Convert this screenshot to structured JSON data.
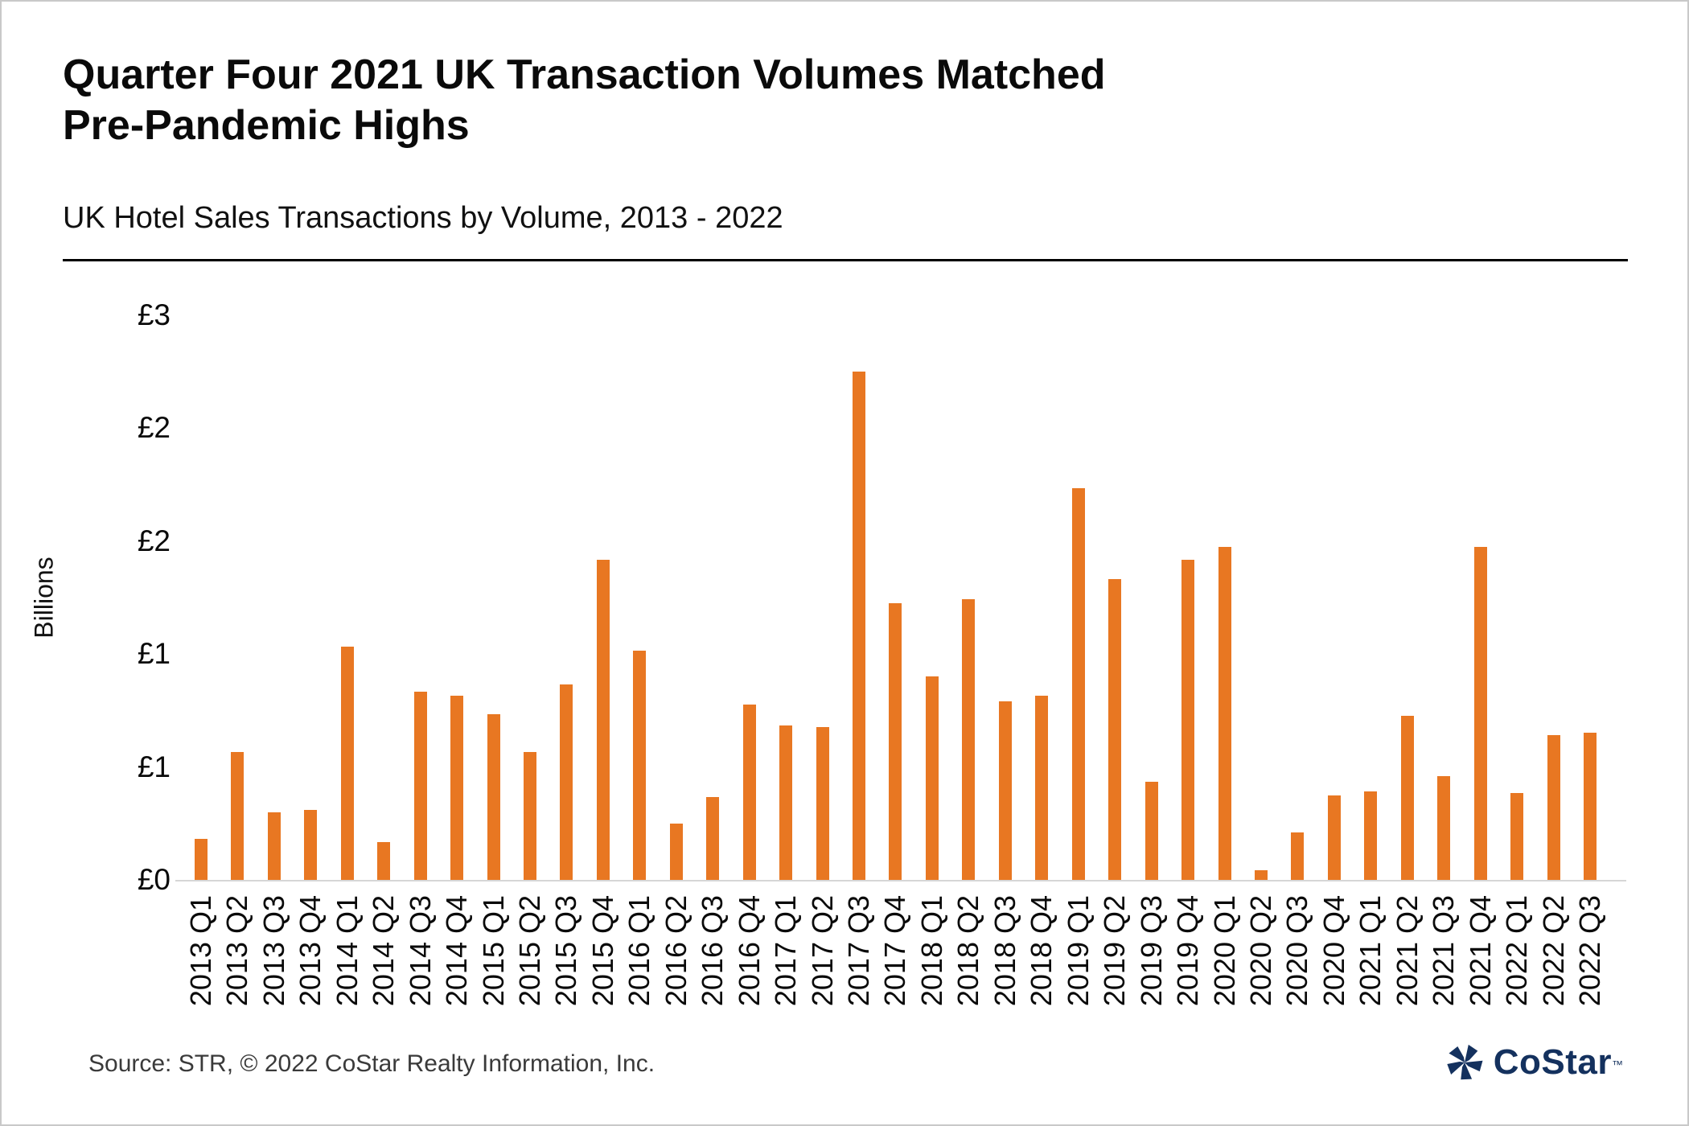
{
  "title": {
    "line1": "Quarter Four 2021 UK Transaction Volumes Matched",
    "line2": "Pre-Pandemic Highs"
  },
  "subtitle": "UK Hotel Sales Transactions by Volume, 2013 - 2022",
  "y_axis": {
    "title": "Billions",
    "ticks": [
      {
        "label": "£3",
        "value": 3.0
      },
      {
        "label": "£2",
        "value": 2.4
      },
      {
        "label": "£2",
        "value": 1.8
      },
      {
        "label": "£1",
        "value": 1.2
      },
      {
        "label": "£1",
        "value": 0.6
      },
      {
        "label": "£0",
        "value": 0.0
      }
    ]
  },
  "source": "Source: STR, © 2022  CoStar Realty Information, Inc.",
  "logo": {
    "text": "CoStar",
    "tm": "™",
    "icon": "costar-pinwheel-icon"
  },
  "colors": {
    "bar": "#E87722",
    "axis_line": "#D6D6D6",
    "logo_navy": "#14315E",
    "text": "#0A0A0A",
    "source_text": "#3A3A3A"
  },
  "chart_data": {
    "type": "bar",
    "title": "Quarter Four 2021 UK Transaction Volumes Matched Pre-Pandemic Highs",
    "subtitle": "UK Hotel Sales Transactions by Volume, 2013 - 2022",
    "xlabel": "",
    "ylabel": "Billions",
    "ylim": [
      0,
      3
    ],
    "y_tick_step": 0.6,
    "y_tick_labels_rounded": [
      "£0",
      "£1",
      "£1",
      "£2",
      "£2",
      "£3"
    ],
    "grid": false,
    "legend": "none",
    "unit": "GBP billions",
    "categories": [
      "2013 Q1",
      "2013 Q2",
      "2013 Q3",
      "2013 Q4",
      "2014 Q1",
      "2014 Q2",
      "2014 Q3",
      "2014 Q4",
      "2015 Q1",
      "2015 Q2",
      "2015 Q3",
      "2015 Q4",
      "2016 Q1",
      "2016 Q2",
      "2016 Q3",
      "2016 Q4",
      "2017 Q1",
      "2017 Q2",
      "2017 Q3",
      "2017 Q4",
      "2018 Q1",
      "2018 Q2",
      "2018 Q3",
      "2018 Q4",
      "2019 Q1",
      "2019 Q2",
      "2019 Q3",
      "2019 Q4",
      "2020 Q1",
      "2020 Q2",
      "2020 Q3",
      "2020 Q4",
      "2021 Q1",
      "2021 Q2",
      "2021 Q3",
      "2021 Q4",
      "2022 Q1",
      "2022 Q2",
      "2022 Q3"
    ],
    "values": [
      0.22,
      0.68,
      0.36,
      0.37,
      1.24,
      0.2,
      1.0,
      0.98,
      0.88,
      0.68,
      1.04,
      1.7,
      1.22,
      0.3,
      0.44,
      0.93,
      0.82,
      0.81,
      2.7,
      1.47,
      1.08,
      1.49,
      0.95,
      0.98,
      2.08,
      1.6,
      0.52,
      1.7,
      1.77,
      0.05,
      0.25,
      0.45,
      0.47,
      0.87,
      0.55,
      1.77,
      0.46,
      0.77,
      0.78
    ]
  }
}
